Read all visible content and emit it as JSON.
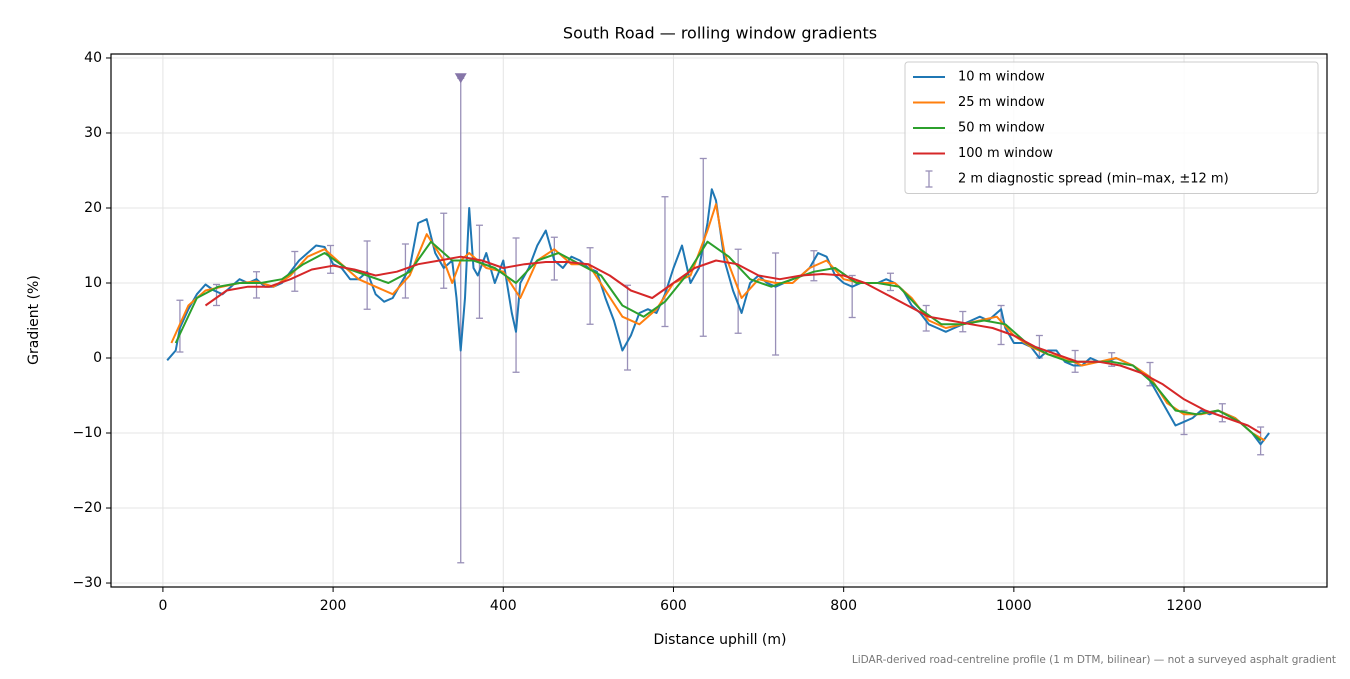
{
  "chart_data": {
    "type": "line",
    "title": "South Road — rolling window gradients",
    "xlabel": "Distance uphill (m)",
    "ylabel": "Gradient (%)",
    "note": "LiDAR-derived road-centreline profile (1 m DTM, bilinear) — not a surveyed asphalt gradient",
    "xlim": [
      -61,
      1368
    ],
    "ylim": [
      -30.53,
      40.53
    ],
    "xticks": [
      0,
      200,
      400,
      600,
      800,
      1000,
      1200
    ],
    "yticks": [
      {
        "value": -30,
        "label": "−30"
      },
      {
        "value": -20,
        "label": "−20"
      },
      {
        "value": -10,
        "label": "−10"
      },
      0,
      10,
      20,
      30,
      40
    ],
    "grid": true,
    "legend": "upper right",
    "series": [
      {
        "name": "10 m window",
        "color": "#1f77b4",
        "x": [
          5,
          15,
          20,
          30,
          40,
          50,
          60,
          70,
          80,
          90,
          100,
          110,
          120,
          130,
          140,
          150,
          160,
          170,
          180,
          190,
          200,
          210,
          220,
          230,
          240,
          250,
          260,
          270,
          280,
          290,
          300,
          310,
          320,
          330,
          340,
          345,
          350,
          355,
          360,
          365,
          370,
          380,
          390,
          400,
          410,
          415,
          420,
          430,
          440,
          450,
          460,
          470,
          480,
          490,
          500,
          510,
          520,
          530,
          540,
          550,
          560,
          570,
          580,
          590,
          600,
          610,
          620,
          630,
          640,
          645,
          650,
          660,
          670,
          680,
          690,
          700,
          710,
          720,
          730,
          740,
          750,
          760,
          770,
          780,
          790,
          800,
          810,
          820,
          830,
          840,
          850,
          860,
          870,
          880,
          890,
          900,
          910,
          920,
          930,
          940,
          950,
          960,
          970,
          980,
          985,
          990,
          1000,
          1010,
          1020,
          1030,
          1040,
          1050,
          1060,
          1070,
          1080,
          1090,
          1100,
          1110,
          1120,
          1130,
          1140,
          1150,
          1160,
          1170,
          1180,
          1190,
          1200,
          1210,
          1220,
          1230,
          1240,
          1250,
          1260,
          1270,
          1280,
          1290,
          1300
        ],
        "values": [
          -0.3,
          1,
          4,
          6.5,
          8.5,
          9.8,
          9,
          8.5,
          9.5,
          10.5,
          10,
          10.5,
          9.5,
          9.5,
          10,
          11.5,
          13,
          14,
          15,
          14.8,
          12.5,
          12,
          10.5,
          10.5,
          11.5,
          8.5,
          7.5,
          8,
          10,
          12,
          18,
          18.5,
          14,
          12,
          13,
          8,
          1,
          8,
          20,
          12,
          11,
          14,
          10,
          13,
          6,
          3.5,
          10,
          12,
          15,
          17,
          13,
          12,
          13.5,
          13,
          12,
          11.5,
          8,
          5,
          1,
          3,
          6,
          6.5,
          6,
          8.5,
          12,
          15,
          10,
          12,
          18,
          22.5,
          21,
          13,
          9,
          6,
          10,
          11,
          10,
          9.5,
          10,
          10.5,
          11,
          12,
          14,
          13.5,
          11,
          10,
          9.5,
          10,
          10,
          10,
          10.5,
          10,
          9,
          7,
          6,
          4.5,
          4,
          3.5,
          4,
          4.5,
          5,
          5.5,
          5,
          6,
          6.5,
          4,
          2,
          2,
          1.5,
          0,
          1,
          1,
          -0.5,
          -1,
          -1,
          0,
          -0.5,
          -0.5,
          0,
          -0.5,
          -1,
          -2,
          -3,
          -5,
          -7,
          -9,
          -8.5,
          -8,
          -7,
          -7.5,
          -7,
          -7.5,
          -8,
          -9,
          -10,
          -11.5,
          -10
        ]
      },
      {
        "name": "25 m window",
        "color": "#ff7f0e",
        "x": [
          10,
          30,
          50,
          70,
          90,
          110,
          130,
          150,
          170,
          190,
          210,
          230,
          250,
          270,
          290,
          310,
          330,
          340,
          350,
          360,
          380,
          400,
          420,
          440,
          460,
          480,
          500,
          520,
          540,
          560,
          580,
          600,
          620,
          640,
          650,
          660,
          680,
          700,
          720,
          740,
          760,
          780,
          800,
          820,
          840,
          860,
          880,
          900,
          920,
          940,
          960,
          980,
          1000,
          1020,
          1040,
          1060,
          1080,
          1100,
          1120,
          1140,
          1160,
          1180,
          1200,
          1220,
          1240,
          1260,
          1280,
          1295
        ],
        "values": [
          2,
          7,
          9,
          9.5,
          10,
          10.2,
          9.5,
          11,
          13.5,
          14.5,
          12.5,
          10.5,
          9.5,
          8.5,
          11,
          16.5,
          13,
          10,
          13,
          14,
          12,
          11.5,
          8,
          13,
          14.5,
          12.5,
          12.5,
          9,
          5.5,
          4.5,
          6.5,
          10,
          11,
          17,
          20.5,
          14,
          8,
          10.5,
          10,
          10,
          12,
          13,
          10.5,
          10,
          10,
          10,
          8,
          5,
          4,
          4.5,
          5,
          5.5,
          3,
          1.5,
          0.5,
          0,
          -1,
          -0.5,
          0,
          -1,
          -2.5,
          -6,
          -7.5,
          -7.5,
          -7,
          -8,
          -10,
          -11
        ]
      },
      {
        "name": "50 m window",
        "color": "#2ca02c",
        "x": [
          15,
          40,
          65,
          90,
          115,
          140,
          165,
          190,
          215,
          240,
          265,
          290,
          315,
          340,
          365,
          390,
          415,
          440,
          465,
          490,
          515,
          540,
          565,
          590,
          615,
          640,
          665,
          690,
          715,
          740,
          765,
          790,
          815,
          840,
          865,
          890,
          915,
          940,
          965,
          990,
          1015,
          1040,
          1065,
          1090,
          1115,
          1140,
          1165,
          1190,
          1215,
          1240,
          1265,
          1290
        ],
        "values": [
          2,
          8,
          9.5,
          10,
          10,
          10.5,
          12.5,
          14,
          12,
          11,
          10,
          11.5,
          15.5,
          13,
          13,
          12,
          10,
          13,
          14,
          12.5,
          11,
          7,
          5.5,
          7.5,
          11,
          15.5,
          13.5,
          10.5,
          9.5,
          10.5,
          11.5,
          12,
          10,
          10,
          9.5,
          6.5,
          4.5,
          4.5,
          5,
          4.5,
          2,
          0.5,
          -0.5,
          -0.5,
          -0.5,
          -1,
          -3.5,
          -7,
          -7.5,
          -7,
          -8.5,
          -11
        ]
      },
      {
        "name": "100 m window",
        "color": "#d62728",
        "x": [
          50,
          75,
          100,
          125,
          150,
          175,
          200,
          225,
          250,
          275,
          300,
          325,
          350,
          375,
          400,
          425,
          450,
          475,
          500,
          525,
          550,
          575,
          600,
          625,
          650,
          675,
          700,
          725,
          750,
          775,
          800,
          825,
          850,
          875,
          900,
          925,
          950,
          975,
          1000,
          1025,
          1050,
          1075,
          1100,
          1125,
          1150,
          1175,
          1200,
          1225,
          1250,
          1275,
          1290
        ],
        "values": [
          7,
          9,
          9.5,
          9.5,
          10.5,
          11.8,
          12.3,
          11.8,
          11,
          11.5,
          12.5,
          13,
          13.5,
          13,
          12,
          12.5,
          12.8,
          12.8,
          12.5,
          11,
          9,
          8,
          10,
          12,
          13,
          12.5,
          11,
          10.5,
          11,
          11.2,
          11,
          10,
          8.5,
          7,
          5.5,
          5,
          4.5,
          4,
          3,
          1.5,
          0.5,
          -0.5,
          -0.5,
          -1,
          -2,
          -3.5,
          -5.5,
          -7,
          -8,
          -9,
          -10
        ]
      }
    ],
    "errorbars": {
      "name": "2 m diagnostic spread (min–max, ±12 m)",
      "color": "#9990b8",
      "x": [
        20,
        63,
        110,
        155,
        197,
        240,
        285,
        330,
        350,
        372,
        415,
        460,
        502,
        546,
        590,
        635,
        676,
        720,
        765,
        810,
        855,
        897,
        940,
        985,
        1030,
        1072,
        1115,
        1160,
        1200,
        1245,
        1290
      ],
      "low": [
        0.8,
        7,
        8,
        8.9,
        11.3,
        6.5,
        8,
        9.3,
        -27.3,
        5.3,
        -1.9,
        10.4,
        4.5,
        -1.6,
        4.2,
        2.9,
        3.3,
        0.4,
        10.3,
        5.4,
        9,
        3.6,
        3.5,
        1.8,
        0,
        -1.9,
        -1.1,
        -3.7,
        -10.2,
        -8.5,
        -12.9
      ],
      "high": [
        7.7,
        9.8,
        11.5,
        14.2,
        15,
        15.6,
        15.2,
        19.3,
        37.3,
        17.7,
        16,
        16.1,
        14.7,
        9.7,
        21.5,
        26.6,
        14.5,
        14,
        14.3,
        11,
        11.3,
        7,
        6.2,
        7,
        3,
        1,
        0.7,
        -0.6,
        -7,
        -6.1,
        -9.2
      ]
    },
    "marker": {
      "x": 350,
      "y": 37.3,
      "color": "#8575a8"
    }
  }
}
